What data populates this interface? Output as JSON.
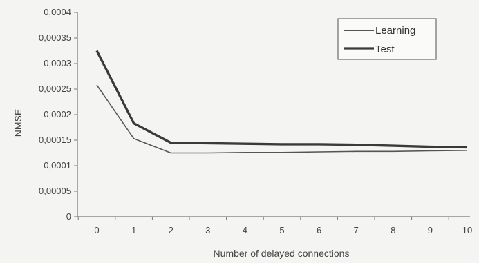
{
  "chart_data": {
    "type": "line",
    "title": "",
    "xlabel": "Number of delayed connections",
    "ylabel": "NMSE",
    "x": [
      0,
      1,
      2,
      3,
      4,
      5,
      6,
      7,
      8,
      9,
      10
    ],
    "xlim": [
      0,
      10
    ],
    "ylim": [
      0,
      0.0004
    ],
    "y_ticks": [
      0,
      5e-05,
      0.0001,
      0.00015,
      0.0002,
      0.00025,
      0.0003,
      0.00035,
      0.0004
    ],
    "y_tick_labels": [
      "0",
      "0,00005",
      "0,0001",
      "0,00015",
      "0,0002",
      "0,00025",
      "0,0003",
      "0,00035",
      "0,0004"
    ],
    "x_tick_labels": [
      "0",
      "1",
      "2",
      "3",
      "4",
      "5",
      "6",
      "7",
      "8",
      "9",
      "10"
    ],
    "grid": false,
    "legend_position": "top-right",
    "series": [
      {
        "name": "Learning",
        "color": "#555555",
        "values": [
          0.000258,
          0.000153,
          0.000125,
          0.000125,
          0.000126,
          0.000126,
          0.000127,
          0.000128,
          0.000128,
          0.000129,
          0.00013
        ]
      },
      {
        "name": "Test",
        "color": "#3a3a3a",
        "values": [
          0.000325,
          0.000183,
          0.000145,
          0.000144,
          0.000143,
          0.000142,
          0.000142,
          0.000141,
          0.000139,
          0.000137,
          0.000136
        ]
      }
    ]
  }
}
